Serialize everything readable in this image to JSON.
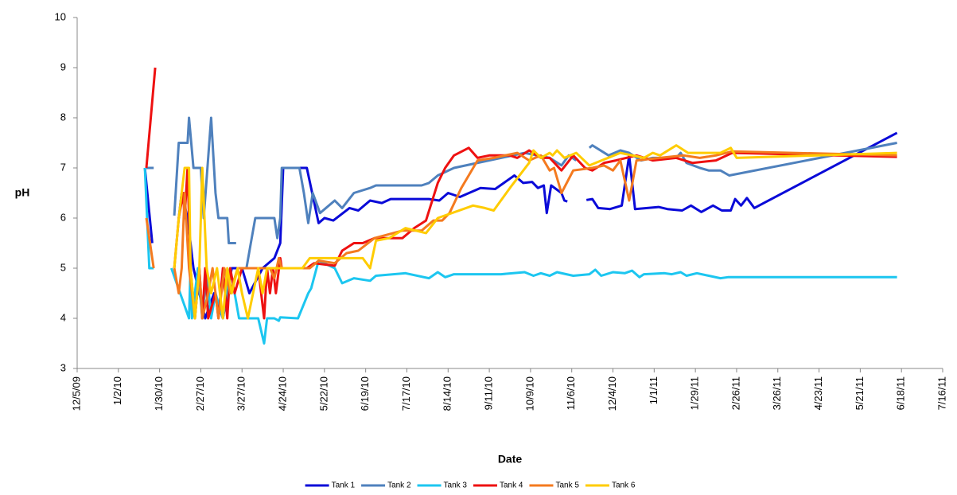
{
  "chart_data": {
    "type": "line",
    "x_label": "Date",
    "y_label": "pH",
    "xlim": [
      "2009-12-05",
      "2011-07-16"
    ],
    "xticks": [
      {
        "value": "2009-12-05",
        "label": "12/5/09"
      },
      {
        "value": "2010-01-02",
        "label": "1/2/10"
      },
      {
        "value": "2010-01-30",
        "label": "1/30/10"
      },
      {
        "value": "2010-02-27",
        "label": "2/27/10"
      },
      {
        "value": "2010-03-27",
        "label": "3/27/10"
      },
      {
        "value": "2010-04-24",
        "label": "4/24/10"
      },
      {
        "value": "2010-05-22",
        "label": "5/22/10"
      },
      {
        "value": "2010-06-19",
        "label": "6/19/10"
      },
      {
        "value": "2010-07-17",
        "label": "7/17/10"
      },
      {
        "value": "2010-08-14",
        "label": "8/14/10"
      },
      {
        "value": "2010-09-11",
        "label": "9/11/10"
      },
      {
        "value": "2010-10-09",
        "label": "10/9/10"
      },
      {
        "value": "2010-11-06",
        "label": "11/6/10"
      },
      {
        "value": "2010-12-04",
        "label": "12/4/10"
      },
      {
        "value": "2011-01-01",
        "label": "1/1/11"
      },
      {
        "value": "2011-01-29",
        "label": "1/29/11"
      },
      {
        "value": "2011-02-26",
        "label": "2/26/11"
      },
      {
        "value": "2011-03-26",
        "label": "3/26/11"
      },
      {
        "value": "2011-04-23",
        "label": "4/23/11"
      },
      {
        "value": "2011-05-21",
        "label": "5/21/11"
      },
      {
        "value": "2011-06-18",
        "label": "6/18/11"
      },
      {
        "value": "2011-07-16",
        "label": "7/16/11"
      }
    ],
    "ylim": [
      3,
      10
    ],
    "yticks": [
      3,
      4,
      5,
      6,
      7,
      8,
      9,
      10
    ],
    "grid": false,
    "legend": "bottom",
    "series": [
      {
        "name": "Tank 1",
        "color": "#0a0ad8",
        "x": [
          "2010-01-20",
          "2010-01-25",
          null,
          "2010-02-12",
          "2010-02-14",
          "2010-02-18",
          "2010-02-22",
          "2010-02-26",
          "2010-03-02",
          "2010-03-08",
          "2010-03-14",
          "2010-03-20",
          "2010-03-27",
          "2010-04-01",
          "2010-04-10",
          "2010-04-18",
          "2010-04-22",
          "2010-04-24",
          "2010-05-10",
          "2010-05-18",
          "2010-05-22",
          "2010-05-28",
          "2010-06-08",
          "2010-06-14",
          "2010-06-22",
          "2010-06-30",
          "2010-07-06",
          "2010-08-01",
          "2010-08-08",
          "2010-08-14",
          "2010-08-22",
          "2010-09-05",
          "2010-09-15",
          "2010-09-28",
          "2010-10-04",
          "2010-10-10",
          "2010-10-14",
          "2010-10-18",
          "2010-10-20",
          "2010-10-23",
          "2010-10-30",
          "2010-11-01",
          "2010-11-03",
          null,
          "2010-11-16",
          "2010-11-20",
          "2010-11-24",
          "2010-12-02",
          "2010-12-10",
          "2010-12-15",
          "2010-12-19",
          "2011-01-04",
          "2011-01-10",
          "2011-01-20",
          "2011-01-26",
          "2011-02-02",
          "2011-02-10",
          "2011-02-16",
          "2011-02-22",
          "2011-02-25",
          "2011-03-01",
          "2011-03-05",
          "2011-03-10",
          "2011-06-15"
        ],
        "values": [
          7.0,
          5.5,
          null,
          6.0,
          6.5,
          6.0,
          5.0,
          4.5,
          4.0,
          4.5,
          4.0,
          5.0,
          5.0,
          4.5,
          5.0,
          5.2,
          5.5,
          7.0,
          7.0,
          5.9,
          6.0,
          5.95,
          6.2,
          6.15,
          6.35,
          6.3,
          6.38,
          6.38,
          6.35,
          6.5,
          6.42,
          6.6,
          6.58,
          6.85,
          6.7,
          6.72,
          6.6,
          6.65,
          6.1,
          6.65,
          6.5,
          6.35,
          6.33,
          null,
          6.36,
          6.38,
          6.2,
          6.18,
          6.25,
          7.25,
          6.18,
          6.22,
          6.18,
          6.15,
          6.25,
          6.12,
          6.25,
          6.15,
          6.15,
          6.38,
          6.25,
          6.4,
          6.2,
          7.7
        ]
      },
      {
        "name": "Tank 2",
        "color": "#4f81bd",
        "x": [
          "2010-01-21",
          "2010-01-26",
          null,
          "2010-02-09",
          "2010-02-12",
          "2010-02-18",
          "2010-02-19",
          "2010-02-22",
          "2010-02-27",
          "2010-03-01",
          "2010-03-06",
          "2010-03-09",
          "2010-03-11",
          "2010-03-17",
          "2010-03-18",
          "2010-03-23",
          null,
          "2010-03-30",
          "2010-04-02",
          "2010-04-05",
          "2010-04-18",
          "2010-04-20",
          "2010-04-22",
          "2010-04-23",
          "2010-05-05",
          "2010-05-08",
          "2010-05-11",
          "2010-05-14",
          "2010-05-19",
          "2010-05-29",
          "2010-06-03",
          "2010-06-11",
          "2010-06-22",
          "2010-06-26",
          "2010-07-27",
          "2010-08-01",
          "2010-08-07",
          "2010-08-18",
          "2010-09-19",
          "2010-10-05",
          "2010-10-22",
          "2010-10-30",
          "2010-11-04",
          "2010-11-09",
          null,
          "2010-11-18",
          "2010-11-20",
          "2010-12-01",
          "2010-12-09",
          "2010-12-15",
          "2010-12-23",
          "2010-12-31",
          "2011-01-16",
          "2011-01-19",
          "2011-01-23",
          "2011-02-01",
          "2011-02-07",
          "2011-02-15",
          "2011-02-21",
          "2011-06-15"
        ],
        "values": [
          7.0,
          7.0,
          null,
          6.05,
          7.5,
          7.5,
          8.0,
          7.0,
          7.0,
          6.0,
          8.0,
          6.5,
          6.0,
          6.0,
          5.5,
          5.5,
          null,
          5.0,
          5.5,
          6.0,
          6.0,
          5.6,
          6.0,
          7.0,
          7.0,
          6.5,
          5.9,
          6.5,
          6.1,
          6.35,
          6.2,
          6.5,
          6.6,
          6.65,
          6.65,
          6.7,
          6.85,
          7.0,
          7.2,
          7.3,
          7.2,
          7.05,
          7.25,
          7.15,
          null,
          7.4,
          7.45,
          7.25,
          7.35,
          7.3,
          7.15,
          7.2,
          7.2,
          7.3,
          7.1,
          7.0,
          6.95,
          6.95,
          6.85,
          7.5
        ]
      },
      {
        "name": "Tank 3",
        "color": "#1cc6f0",
        "x": [
          "2010-01-20",
          "2010-01-23",
          "2010-01-26",
          null,
          "2010-02-07",
          "2010-02-19",
          "2010-02-20",
          "2010-02-21",
          "2010-02-25",
          "2010-02-28",
          "2010-03-03",
          "2010-03-06",
          "2010-03-09",
          "2010-03-14",
          "2010-03-19",
          "2010-03-25",
          "2010-04-07",
          "2010-04-11",
          "2010-04-13",
          "2010-04-18",
          "2010-04-21",
          "2010-04-22",
          "2010-05-04",
          "2010-05-11",
          "2010-05-13",
          "2010-05-18",
          "2010-05-29",
          "2010-06-03",
          "2010-06-11",
          "2010-06-22",
          "2010-06-26",
          "2010-07-16",
          "2010-08-01",
          "2010-08-07",
          "2010-08-12",
          "2010-08-18",
          "2010-09-19",
          "2010-10-05",
          "2010-10-11",
          "2010-10-16",
          "2010-10-22",
          "2010-10-27",
          "2010-11-07",
          "2010-11-18",
          "2010-11-22",
          "2010-11-26",
          "2010-12-04",
          "2010-12-12",
          "2010-12-17",
          "2010-12-22",
          "2010-12-25",
          "2011-01-08",
          "2011-01-13",
          "2011-01-19",
          "2011-01-23",
          "2011-01-30",
          "2011-02-15",
          "2011-02-20",
          "2011-06-15"
        ],
        "values": [
          7.0,
          5.0,
          5.0,
          null,
          5.0,
          4.0,
          5.0,
          4.0,
          5.0,
          4.0,
          5.0,
          4.0,
          4.5,
          4.0,
          5.0,
          4.0,
          4.0,
          3.5,
          4.0,
          4.0,
          3.95,
          4.02,
          4.0,
          4.5,
          4.6,
          5.15,
          5.0,
          4.7,
          4.8,
          4.75,
          4.85,
          4.9,
          4.8,
          4.92,
          4.82,
          4.88,
          4.88,
          4.92,
          4.85,
          4.9,
          4.85,
          4.92,
          4.85,
          4.88,
          4.97,
          4.85,
          4.92,
          4.9,
          4.95,
          4.82,
          4.88,
          4.9,
          4.88,
          4.92,
          4.85,
          4.9,
          4.8,
          4.82,
          4.82
        ]
      },
      {
        "name": "Tank 4",
        "color": "#ee1111",
        "x": [
          "2010-01-21",
          "2010-01-27",
          null,
          "2010-02-09",
          "2010-02-12",
          "2010-02-15",
          "2010-02-16",
          "2010-02-18",
          "2010-02-20",
          "2010-02-23",
          "2010-02-26",
          "2010-02-28",
          "2010-03-02",
          "2010-03-04",
          "2010-03-09",
          "2010-03-11",
          "2010-03-14",
          "2010-03-17",
          "2010-03-19",
          "2010-03-22",
          "2010-03-27",
          "2010-04-07",
          "2010-04-11",
          "2010-04-13",
          "2010-04-15",
          "2010-04-17",
          "2010-04-19",
          "2010-04-22",
          "2010-04-23",
          "2010-05-10",
          "2010-05-15",
          "2010-05-29",
          "2010-06-03",
          "2010-06-11",
          "2010-06-17",
          "2010-06-25",
          "2010-07-14",
          "2010-07-22",
          "2010-07-30",
          "2010-08-07",
          "2010-08-12",
          "2010-08-18",
          "2010-08-28",
          "2010-09-03",
          "2010-09-11",
          "2010-09-25",
          "2010-09-30",
          "2010-10-08",
          "2010-10-16",
          "2010-10-22",
          "2010-10-30",
          "2010-11-07",
          "2010-11-15",
          "2010-11-20",
          "2010-11-28",
          "2010-12-06",
          "2010-12-20",
          "2010-12-31",
          "2011-01-16",
          "2011-01-27",
          "2011-02-12",
          "2011-02-23",
          "2011-06-15"
        ],
        "values": [
          7.0,
          9.0,
          null,
          5.0,
          6.0,
          6.5,
          6.0,
          7.0,
          5.0,
          4.0,
          5.0,
          4.0,
          5.0,
          4.0,
          4.5,
          4.0,
          5.0,
          4.0,
          5.0,
          4.5,
          5.0,
          5.0,
          4.0,
          5.0,
          4.5,
          5.0,
          4.5,
          5.2,
          5.0,
          5.0,
          5.1,
          5.05,
          5.35,
          5.5,
          5.5,
          5.6,
          5.6,
          5.8,
          5.95,
          6.7,
          7.0,
          7.25,
          7.4,
          7.2,
          7.25,
          7.25,
          7.2,
          7.35,
          7.2,
          7.2,
          6.95,
          7.25,
          7.0,
          6.95,
          7.1,
          7.15,
          7.25,
          7.15,
          7.2,
          7.1,
          7.15,
          7.3,
          7.22
        ]
      },
      {
        "name": "Tank 5",
        "color": "#f47a1f",
        "x": [
          "2010-01-21",
          "2010-01-26",
          null,
          "2010-02-09",
          "2010-02-12",
          "2010-02-14",
          "2010-02-16",
          "2010-02-19",
          "2010-02-21",
          "2010-02-23",
          "2010-02-26",
          "2010-02-28",
          "2010-03-04",
          "2010-03-07",
          "2010-03-11",
          "2010-03-15",
          "2010-03-19",
          "2010-03-24",
          "2010-04-15",
          "2010-04-18",
          "2010-04-21",
          "2010-04-23",
          "2010-05-12",
          "2010-05-18",
          "2010-05-29",
          "2010-06-06",
          "2010-06-14",
          "2010-06-25",
          "2010-07-14",
          "2010-07-27",
          "2010-08-04",
          "2010-08-10",
          "2010-08-15",
          "2010-08-23",
          "2010-09-03",
          "2010-09-14",
          "2010-09-30",
          "2010-10-08",
          "2010-10-16",
          "2010-10-22",
          "2010-10-25",
          "2010-10-30",
          "2010-11-07",
          "2010-11-20",
          "2010-11-28",
          "2010-12-04",
          "2010-12-09",
          "2010-12-15",
          "2010-12-20",
          "2011-01-05",
          "2011-01-21",
          "2011-02-01",
          "2011-02-12",
          "2011-02-23",
          "2011-06-15"
        ],
        "values": [
          6.0,
          5.0,
          null,
          5.0,
          4.5,
          5.0,
          6.5,
          5.0,
          4.5,
          4.0,
          5.0,
          4.0,
          4.5,
          5.0,
          4.0,
          5.0,
          4.5,
          5.0,
          5.0,
          4.8,
          5.2,
          5.0,
          5.0,
          5.15,
          5.1,
          5.3,
          5.35,
          5.6,
          5.75,
          5.75,
          5.95,
          5.95,
          6.1,
          6.6,
          7.15,
          7.2,
          7.3,
          7.15,
          7.25,
          6.95,
          7.0,
          6.5,
          6.95,
          7.0,
          7.05,
          6.95,
          7.15,
          6.35,
          7.15,
          7.2,
          7.25,
          7.2,
          7.25,
          7.33,
          7.25
        ]
      },
      {
        "name": "Tank 6",
        "color": "#ffcc00",
        "x": [
          "2010-02-09",
          "2010-02-12",
          "2010-02-16",
          "2010-02-19",
          "2010-02-20",
          "2010-02-23",
          "2010-02-26",
          "2010-02-28",
          "2010-03-03",
          "2010-03-06",
          "2010-03-10",
          "2010-03-14",
          "2010-03-17",
          "2010-03-20",
          "2010-03-24",
          "2010-03-27",
          "2010-03-31",
          "2010-04-07",
          "2010-04-10",
          "2010-04-13",
          "2010-05-07",
          "2010-05-12",
          "2010-06-17",
          "2010-06-22",
          "2010-06-26",
          "2010-07-05",
          "2010-07-16",
          "2010-07-30",
          "2010-08-07",
          "2010-08-31",
          "2010-09-08",
          "2010-09-14",
          "2010-09-25",
          "2010-10-08",
          "2010-10-11",
          "2010-10-16",
          "2010-10-22",
          "2010-10-24",
          "2010-10-27",
          "2010-11-01",
          "2010-11-09",
          "2010-11-18",
          "2010-12-09",
          "2010-12-25",
          "2010-12-31",
          "2011-01-05",
          "2011-01-16",
          "2011-01-24",
          "2011-02-01",
          "2011-02-15",
          "2011-02-22",
          "2011-02-26",
          "2011-06-15"
        ],
        "values": [
          5.0,
          6.0,
          7.0,
          7.0,
          5.0,
          4.0,
          5.0,
          7.0,
          5.0,
          4.5,
          5.0,
          4.0,
          5.0,
          4.5,
          5.0,
          4.5,
          4.0,
          5.0,
          4.5,
          5.0,
          5.0,
          5.2,
          5.2,
          5.0,
          5.55,
          5.6,
          5.8,
          5.7,
          6.0,
          6.25,
          6.2,
          6.15,
          6.6,
          7.1,
          7.35,
          7.2,
          7.3,
          7.25,
          7.35,
          7.2,
          7.3,
          7.05,
          7.3,
          7.2,
          7.3,
          7.25,
          7.45,
          7.3,
          7.3,
          7.3,
          7.4,
          7.2,
          7.3
        ]
      }
    ]
  }
}
